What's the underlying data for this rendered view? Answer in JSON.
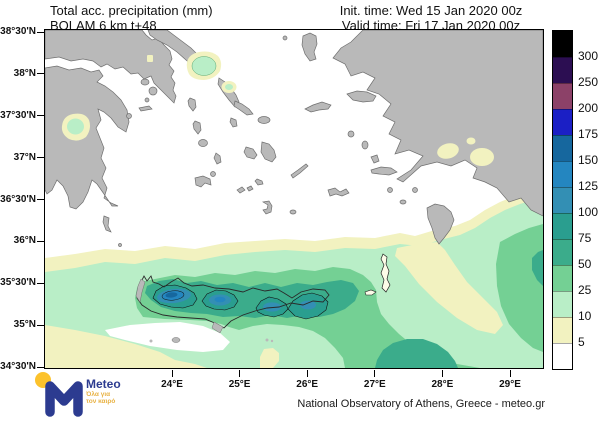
{
  "header": {
    "title": "Total acc. precipitation (mm)",
    "model": "BOLAM 6 km t+48",
    "init_time": "Init. time: Wed 15 Jan 2020 00z",
    "valid_time": "Valid time: Fri 17 Jan 2020 00z"
  },
  "map": {
    "lat_labels": [
      "38°30'N",
      "38°N",
      "37°30'N",
      "37°N",
      "36°30'N",
      "36°N",
      "35°30'N",
      "35°N",
      "34°30'N"
    ],
    "lon_labels": [
      "24°E",
      "25°E",
      "26°E",
      "27°E",
      "28°E",
      "29°E"
    ]
  },
  "colorbar": {
    "unit": "mm",
    "labels": [
      "300",
      "250",
      "200",
      "175",
      "150",
      "125",
      "100",
      "75",
      "50",
      "25",
      "10",
      "5"
    ],
    "segments": [
      "#000000",
      "#2c0e52",
      "#8c4168",
      "#1b1fc5",
      "#16679e",
      "#2486c0",
      "#338fb4",
      "#2a9e8f",
      "#3bac8b",
      "#74d094",
      "#b9eec7",
      "#f2f2c0",
      "#ffffff"
    ]
  },
  "palette": {
    "land": "#b9b9b9",
    "coast": "#6f6f6f",
    "darkcoast": "#2a2a2a",
    "sea": "#ffffff",
    "island_pale": "#fcfce8",
    "p5": "#f2f2c0",
    "p10": "#b9eec7",
    "p25": "#74d094",
    "p50": "#3bac8b",
    "p75": "#2a9e8f",
    "p100": "#338fb4",
    "p125": "#2486c0",
    "p150": "#16679e",
    "accent_blue": "#2c3b90",
    "accent_yellow": "#fcc22c",
    "tagline_yellow": "#e8b244"
  },
  "footer": {
    "logo_text": "Meteo",
    "tagline_line1": "Όλα για",
    "tagline_line2": "τον καιρό",
    "attribution": "National Observatory of Athens, Greece - meteo.gr"
  }
}
